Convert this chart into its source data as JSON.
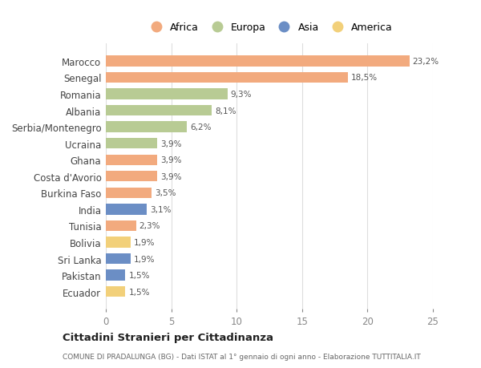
{
  "categories": [
    "Marocco",
    "Senegal",
    "Romania",
    "Albania",
    "Serbia/Montenegro",
    "Ucraina",
    "Ghana",
    "Costa d'Avorio",
    "Burkina Faso",
    "India",
    "Tunisia",
    "Bolivia",
    "Sri Lanka",
    "Pakistan",
    "Ecuador"
  ],
  "values": [
    23.2,
    18.5,
    9.3,
    8.1,
    6.2,
    3.9,
    3.9,
    3.9,
    3.5,
    3.1,
    2.3,
    1.9,
    1.9,
    1.5,
    1.5
  ],
  "continents": [
    "Africa",
    "Africa",
    "Europa",
    "Europa",
    "Europa",
    "Europa",
    "Africa",
    "Africa",
    "Africa",
    "Asia",
    "Africa",
    "America",
    "Asia",
    "Asia",
    "America"
  ],
  "colors": {
    "Africa": "#F2AA7E",
    "Europa": "#B8CB94",
    "Asia": "#6B8EC5",
    "America": "#F2D07A"
  },
  "xlim": [
    0,
    25
  ],
  "xticks": [
    0,
    5,
    10,
    15,
    20,
    25
  ],
  "title": "Cittadini Stranieri per Cittadinanza",
  "subtitle": "COMUNE DI PRADALUNGA (BG) - Dati ISTAT al 1° gennaio di ogni anno - Elaborazione TUTTITALIA.IT",
  "background_color": "#ffffff",
  "grid_color": "#dddddd",
  "bar_height": 0.65,
  "value_labels": [
    "23,2%",
    "18,5%",
    "9,3%",
    "8,1%",
    "6,2%",
    "3,9%",
    "3,9%",
    "3,9%",
    "3,5%",
    "3,1%",
    "2,3%",
    "1,9%",
    "1,9%",
    "1,5%",
    "1,5%"
  ],
  "legend_order": [
    "Africa",
    "Europa",
    "Asia",
    "America"
  ]
}
